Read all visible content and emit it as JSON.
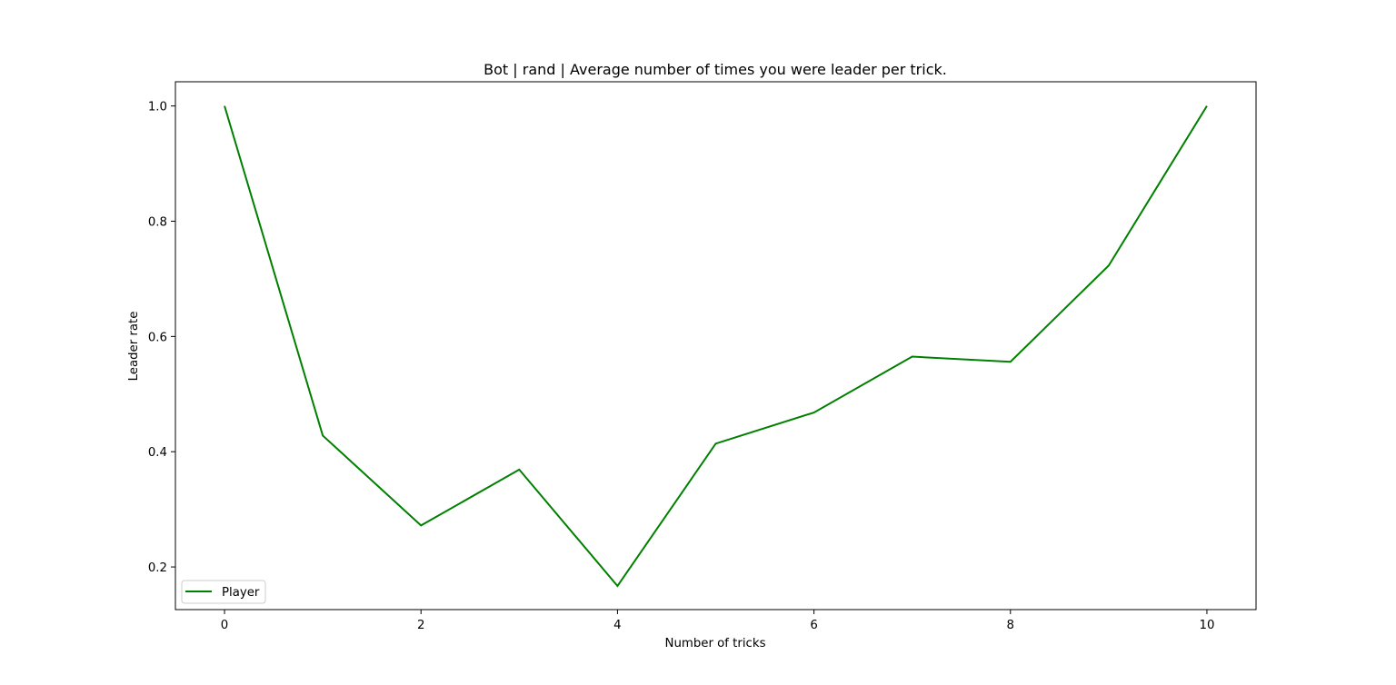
{
  "chart_data": {
    "type": "line",
    "title": "Bot | rand | Average number of times you were leader per trick.",
    "xlabel": "Number of tricks",
    "ylabel": "Leader rate",
    "x": [
      0,
      1,
      2,
      3,
      4,
      5,
      6,
      7,
      8,
      9,
      10
    ],
    "series": [
      {
        "name": "Player",
        "color": "#008000",
        "values": [
          1.0,
          0.428,
          0.272,
          0.369,
          0.167,
          0.414,
          0.468,
          0.565,
          0.556,
          0.723,
          1.0
        ]
      }
    ],
    "xlim": [
      -0.5,
      10.5
    ],
    "ylim": [
      0.126,
      1.042
    ],
    "xticks": [
      0,
      2,
      4,
      6,
      8,
      10
    ],
    "yticks": [
      0.2,
      0.4,
      0.6,
      0.8,
      1.0
    ],
    "yticklabels": [
      "0.2",
      "0.4",
      "0.6",
      "0.8",
      "1.0"
    ],
    "grid": false,
    "legend_position": "lower-left"
  }
}
